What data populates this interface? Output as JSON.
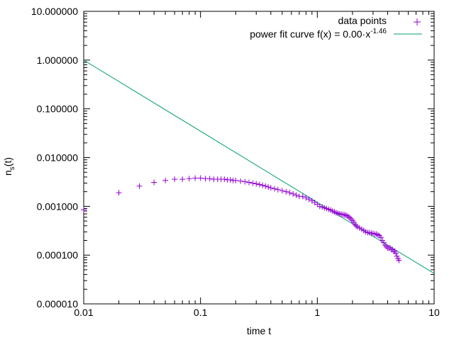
{
  "chart_data": {
    "type": "scatter",
    "xlabel": "time t",
    "ylabel_main": "n",
    "ylabel_sub": "s",
    "ylabel_tail": "(t)",
    "xscale": "log",
    "yscale": "log",
    "xlim": [
      0.01,
      10
    ],
    "ylim": [
      1e-05,
      10
    ],
    "x_ticks": [
      {
        "value": 0.01,
        "label": "0.01"
      },
      {
        "value": 0.1,
        "label": "0.1"
      },
      {
        "value": 1,
        "label": "1"
      },
      {
        "value": 10,
        "label": "10"
      }
    ],
    "y_ticks": [
      {
        "value": 1e-05,
        "label": "0.000010"
      },
      {
        "value": 0.0001,
        "label": "0.000100"
      },
      {
        "value": 0.001,
        "label": "0.001000"
      },
      {
        "value": 0.01,
        "label": "0.010000"
      },
      {
        "value": 0.1,
        "label": "0.100000"
      },
      {
        "value": 1,
        "label": "1.000000"
      },
      {
        "value": 10,
        "label": "10.000000"
      }
    ],
    "grid": false,
    "legend_position": "top-right",
    "series": [
      {
        "name": "data points",
        "marker": "+",
        "color": "#9400d3",
        "points": [
          [
            0.01,
            0.00085
          ],
          [
            0.02,
            0.0019
          ],
          [
            0.03,
            0.0026
          ],
          [
            0.04,
            0.0031
          ],
          [
            0.05,
            0.0034
          ],
          [
            0.06,
            0.0036
          ],
          [
            0.07,
            0.0036
          ],
          [
            0.08,
            0.0037
          ],
          [
            0.09,
            0.0038
          ],
          [
            0.1,
            0.0038
          ],
          [
            0.11,
            0.0037
          ],
          [
            0.12,
            0.0037
          ],
          [
            0.13,
            0.0036
          ],
          [
            0.14,
            0.0036
          ],
          [
            0.15,
            0.0036
          ],
          [
            0.16,
            0.0036
          ],
          [
            0.17,
            0.0035
          ],
          [
            0.18,
            0.0035
          ],
          [
            0.19,
            0.0034
          ],
          [
            0.2,
            0.0034
          ],
          [
            0.22,
            0.0033
          ],
          [
            0.24,
            0.0032
          ],
          [
            0.26,
            0.0031
          ],
          [
            0.28,
            0.003
          ],
          [
            0.3,
            0.0029
          ],
          [
            0.32,
            0.0028
          ],
          [
            0.34,
            0.0027
          ],
          [
            0.36,
            0.0026
          ],
          [
            0.38,
            0.0025
          ],
          [
            0.4,
            0.0024
          ],
          [
            0.43,
            0.0023
          ],
          [
            0.46,
            0.0022
          ],
          [
            0.5,
            0.0021
          ],
          [
            0.54,
            0.002
          ],
          [
            0.58,
            0.0019
          ],
          [
            0.62,
            0.0018
          ],
          [
            0.66,
            0.0017
          ],
          [
            0.7,
            0.0016
          ],
          [
            0.75,
            0.0016
          ],
          [
            0.8,
            0.0015
          ],
          [
            0.85,
            0.0014
          ],
          [
            0.9,
            0.0013
          ],
          [
            0.95,
            0.0012
          ],
          [
            1.0,
            0.0011
          ],
          [
            1.05,
            0.001
          ],
          [
            1.1,
            0.00097
          ],
          [
            1.15,
            0.00093
          ],
          [
            1.2,
            0.0009
          ],
          [
            1.25,
            0.00087
          ],
          [
            1.3,
            0.00084
          ],
          [
            1.35,
            0.0008
          ],
          [
            1.4,
            0.00077
          ],
          [
            1.45,
            0.00074
          ],
          [
            1.5,
            0.00072
          ],
          [
            1.55,
            0.0007
          ],
          [
            1.6,
            0.00069
          ],
          [
            1.65,
            0.00068
          ],
          [
            1.7,
            0.00067
          ],
          [
            1.75,
            0.00066
          ],
          [
            1.8,
            0.00064
          ],
          [
            1.85,
            0.00061
          ],
          [
            1.9,
            0.00058
          ],
          [
            1.95,
            0.00055
          ],
          [
            2.0,
            0.00051
          ],
          [
            2.05,
            0.00047
          ],
          [
            2.1,
            0.00043
          ],
          [
            2.15,
            0.0004
          ],
          [
            2.2,
            0.00038
          ],
          [
            2.3,
            0.00036
          ],
          [
            2.4,
            0.00034
          ],
          [
            2.5,
            0.00032
          ],
          [
            2.6,
            0.0003
          ],
          [
            2.7,
            0.00029
          ],
          [
            2.8,
            0.00029
          ],
          [
            2.9,
            0.00028
          ],
          [
            3.0,
            0.00028
          ],
          [
            3.1,
            0.00027
          ],
          [
            3.2,
            0.00027
          ],
          [
            3.3,
            0.00026
          ],
          [
            3.4,
            0.00025
          ],
          [
            3.5,
            0.00023
          ],
          [
            3.6,
            0.0002
          ],
          [
            3.7,
            0.00018
          ],
          [
            3.8,
            0.00016
          ],
          [
            3.9,
            0.00015
          ],
          [
            4.0,
            0.00014
          ],
          [
            4.1,
            0.00014
          ],
          [
            4.2,
            0.00014
          ],
          [
            4.3,
            0.00013
          ],
          [
            4.4,
            0.00013
          ],
          [
            4.5,
            0.00012
          ],
          [
            4.6,
            0.00012
          ],
          [
            4.7,
            0.00011
          ],
          [
            4.8,
            9.5e-05
          ],
          [
            4.9,
            8.5e-05
          ],
          [
            5.0,
            7.8e-05
          ]
        ]
      },
      {
        "name_prefix": "power fit curve f(x) = 0.00·x",
        "exponent_label": "-1.46",
        "type": "line",
        "color": "#009e73",
        "line_points": [
          [
            0.01,
            1.0
          ],
          [
            10,
            4.2e-05
          ]
        ]
      }
    ]
  }
}
